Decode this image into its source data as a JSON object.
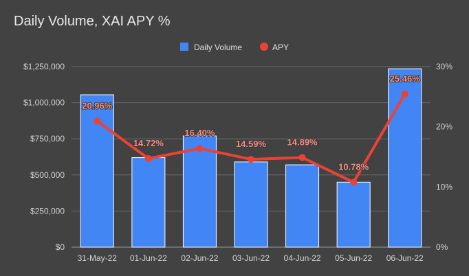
{
  "chart_data": {
    "type": "bar+line",
    "title": "Daily Volume, XAI APY %",
    "categories": [
      "31-May-22",
      "01-Jun-22",
      "02-Jun-22",
      "03-Jun-22",
      "04-Jun-22",
      "05-Jun-22",
      "06-Jun-22"
    ],
    "series": [
      {
        "name": "Daily Volume",
        "type": "bar",
        "axis": "left",
        "color": "#4285f4",
        "values": [
          1055000,
          620000,
          770000,
          590000,
          570000,
          450000,
          1235000
        ]
      },
      {
        "name": "APY",
        "type": "line",
        "axis": "right",
        "color": "#ea4335",
        "values": [
          20.96,
          14.72,
          16.4,
          14.59,
          14.89,
          10.78,
          25.46
        ],
        "data_labels": [
          "20.96%",
          "14.72%",
          "16.40%",
          "14.59%",
          "14.89%",
          "10.78%",
          "25.46%"
        ]
      }
    ],
    "y_left": {
      "min": 0,
      "max": 1250000,
      "ticks": [
        0,
        250000,
        500000,
        750000,
        1000000,
        1250000
      ],
      "tick_labels": [
        "$0",
        "$250,000",
        "$500,000",
        "$750,000",
        "$1,000,000",
        "$1,250,000"
      ]
    },
    "y_right": {
      "min": 0,
      "max": 30,
      "ticks": [
        0,
        10,
        20,
        30
      ],
      "tick_labels": [
        "0%",
        "10%",
        "20%",
        "30%"
      ]
    },
    "legend": {
      "position": "top-center",
      "items": [
        "Daily Volume",
        "APY"
      ]
    },
    "grid": true
  }
}
